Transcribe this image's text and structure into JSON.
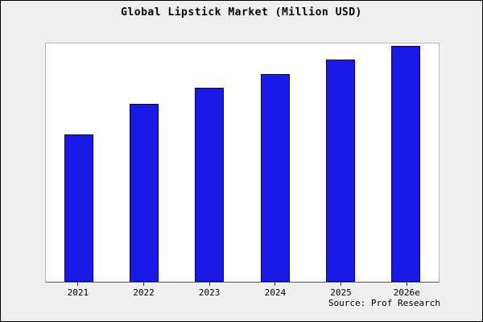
{
  "title": "Global Lipstick Market (Million USD)",
  "source": "Source: Prof Research",
  "colors": {
    "bar": "#1a1ae6",
    "bar_edge": "#000080",
    "background": "#efefef",
    "plot_background": "#ffffff"
  },
  "chart_data": {
    "type": "bar",
    "title": "Global Lipstick Market (Million USD)",
    "categories": [
      "2021",
      "2022",
      "2023",
      "2024",
      "2025",
      "2026e"
    ],
    "values": [
      63,
      76,
      83,
      89,
      95,
      101
    ],
    "xlabel": "",
    "ylabel": "",
    "ylim": [
      0,
      102
    ],
    "grid": false,
    "legend": false
  }
}
